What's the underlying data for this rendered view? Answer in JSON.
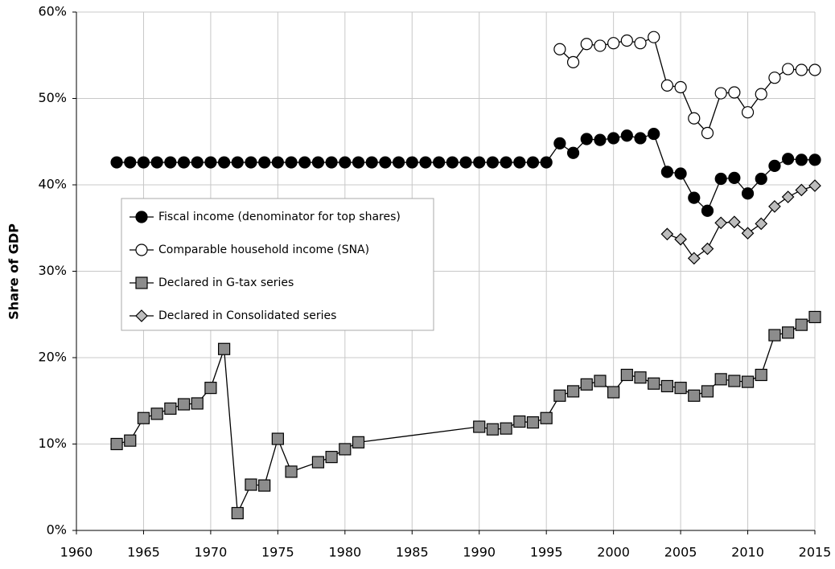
{
  "chart_data": {
    "type": "line",
    "y_label": "Share of GDP",
    "xlim": [
      1960,
      2015
    ],
    "xticks": [
      1960,
      1965,
      1970,
      1975,
      1980,
      1985,
      1990,
      1995,
      2000,
      2005,
      2010,
      2015
    ],
    "ylim": [
      0,
      60
    ],
    "yticks": [
      {
        "value": 0,
        "label": "0%"
      },
      {
        "value": 10,
        "label": "10%"
      },
      {
        "value": 20,
        "label": "20%"
      },
      {
        "value": 30,
        "label": "30%"
      },
      {
        "value": 40,
        "label": "40%"
      },
      {
        "value": 50,
        "label": "50%"
      },
      {
        "value": 60,
        "label": "60%"
      }
    ],
    "grid": true,
    "legend": "center-left",
    "series": [
      {
        "name": "Fiscal income (denominator for top shares)",
        "color": "#000000",
        "marker": "circle",
        "x": [
          1963,
          1964,
          1965,
          1966,
          1967,
          1968,
          1969,
          1970,
          1971,
          1972,
          1973,
          1974,
          1975,
          1976,
          1977,
          1978,
          1979,
          1980,
          1981,
          1982,
          1983,
          1984,
          1985,
          1986,
          1987,
          1988,
          1989,
          1990,
          1991,
          1992,
          1993,
          1994,
          1995,
          1996,
          1997,
          1998,
          1999,
          2000,
          2001,
          2002,
          2003,
          2004,
          2005,
          2006,
          2007,
          2008,
          2009,
          2010,
          2011,
          2012,
          2013,
          2014,
          2015
        ],
        "values": [
          42.6,
          42.6,
          42.6,
          42.6,
          42.6,
          42.6,
          42.6,
          42.6,
          42.6,
          42.6,
          42.6,
          42.6,
          42.6,
          42.6,
          42.6,
          42.6,
          42.6,
          42.6,
          42.6,
          42.6,
          42.6,
          42.6,
          42.6,
          42.6,
          42.6,
          42.6,
          42.6,
          42.6,
          42.6,
          42.6,
          42.6,
          42.6,
          42.6,
          44.8,
          43.7,
          45.3,
          45.2,
          45.4,
          45.7,
          45.4,
          45.9,
          41.5,
          41.3,
          38.5,
          37.0,
          40.7,
          40.8,
          39.0,
          40.7,
          42.2,
          43.0,
          42.9,
          42.9
        ]
      },
      {
        "name": "Comparable household income (SNA)",
        "color": "#ffffff",
        "marker": "circle",
        "x": [
          1996,
          1997,
          1998,
          1999,
          2000,
          2001,
          2002,
          2003,
          2004,
          2005,
          2006,
          2007,
          2008,
          2009,
          2010,
          2011,
          2012,
          2013,
          2014,
          2015
        ],
        "values": [
          55.7,
          54.2,
          56.3,
          56.1,
          56.4,
          56.7,
          56.4,
          57.1,
          51.5,
          51.3,
          47.7,
          46.0,
          50.6,
          50.7,
          48.4,
          50.5,
          52.4,
          53.4,
          53.3,
          53.3
        ]
      },
      {
        "name": "Declared in G-tax series",
        "color": "#8c8c8c",
        "marker": "square",
        "x": [
          1963,
          1964,
          1965,
          1966,
          1967,
          1968,
          1969,
          1970,
          1971,
          1972,
          1973,
          1974,
          1975,
          1976,
          1978,
          1979,
          1980,
          1981,
          1990,
          1991,
          1992,
          1993,
          1994,
          1995,
          1996,
          1997,
          1998,
          1999,
          2000,
          2001,
          2002,
          2003,
          2004,
          2005,
          2006,
          2007,
          2008,
          2009,
          2010,
          2011,
          2012,
          2013,
          2014,
          2015
        ],
        "values": [
          10.0,
          10.4,
          13.0,
          13.5,
          14.1,
          14.6,
          14.7,
          16.5,
          21.0,
          2.0,
          5.3,
          5.2,
          10.6,
          6.8,
          7.9,
          8.5,
          9.4,
          10.2,
          12.0,
          11.7,
          11.8,
          12.6,
          12.5,
          13.0,
          15.6,
          16.1,
          16.9,
          17.3,
          16.0,
          18.0,
          17.7,
          17.0,
          16.7,
          16.5,
          15.6,
          16.1,
          17.5,
          17.3,
          17.2,
          18.0,
          22.6,
          22.9,
          23.8,
          24.7
        ]
      },
      {
        "name": "Declared in Consolidated series",
        "color": "#bdbdbd",
        "marker": "diamond",
        "x": [
          2004,
          2005,
          2006,
          2007,
          2008,
          2009,
          2010,
          2011,
          2012,
          2013,
          2014,
          2015
        ],
        "values": [
          34.3,
          33.7,
          31.5,
          32.6,
          35.6,
          35.7,
          34.4,
          35.5,
          37.5,
          38.6,
          39.4,
          39.9
        ]
      }
    ]
  }
}
